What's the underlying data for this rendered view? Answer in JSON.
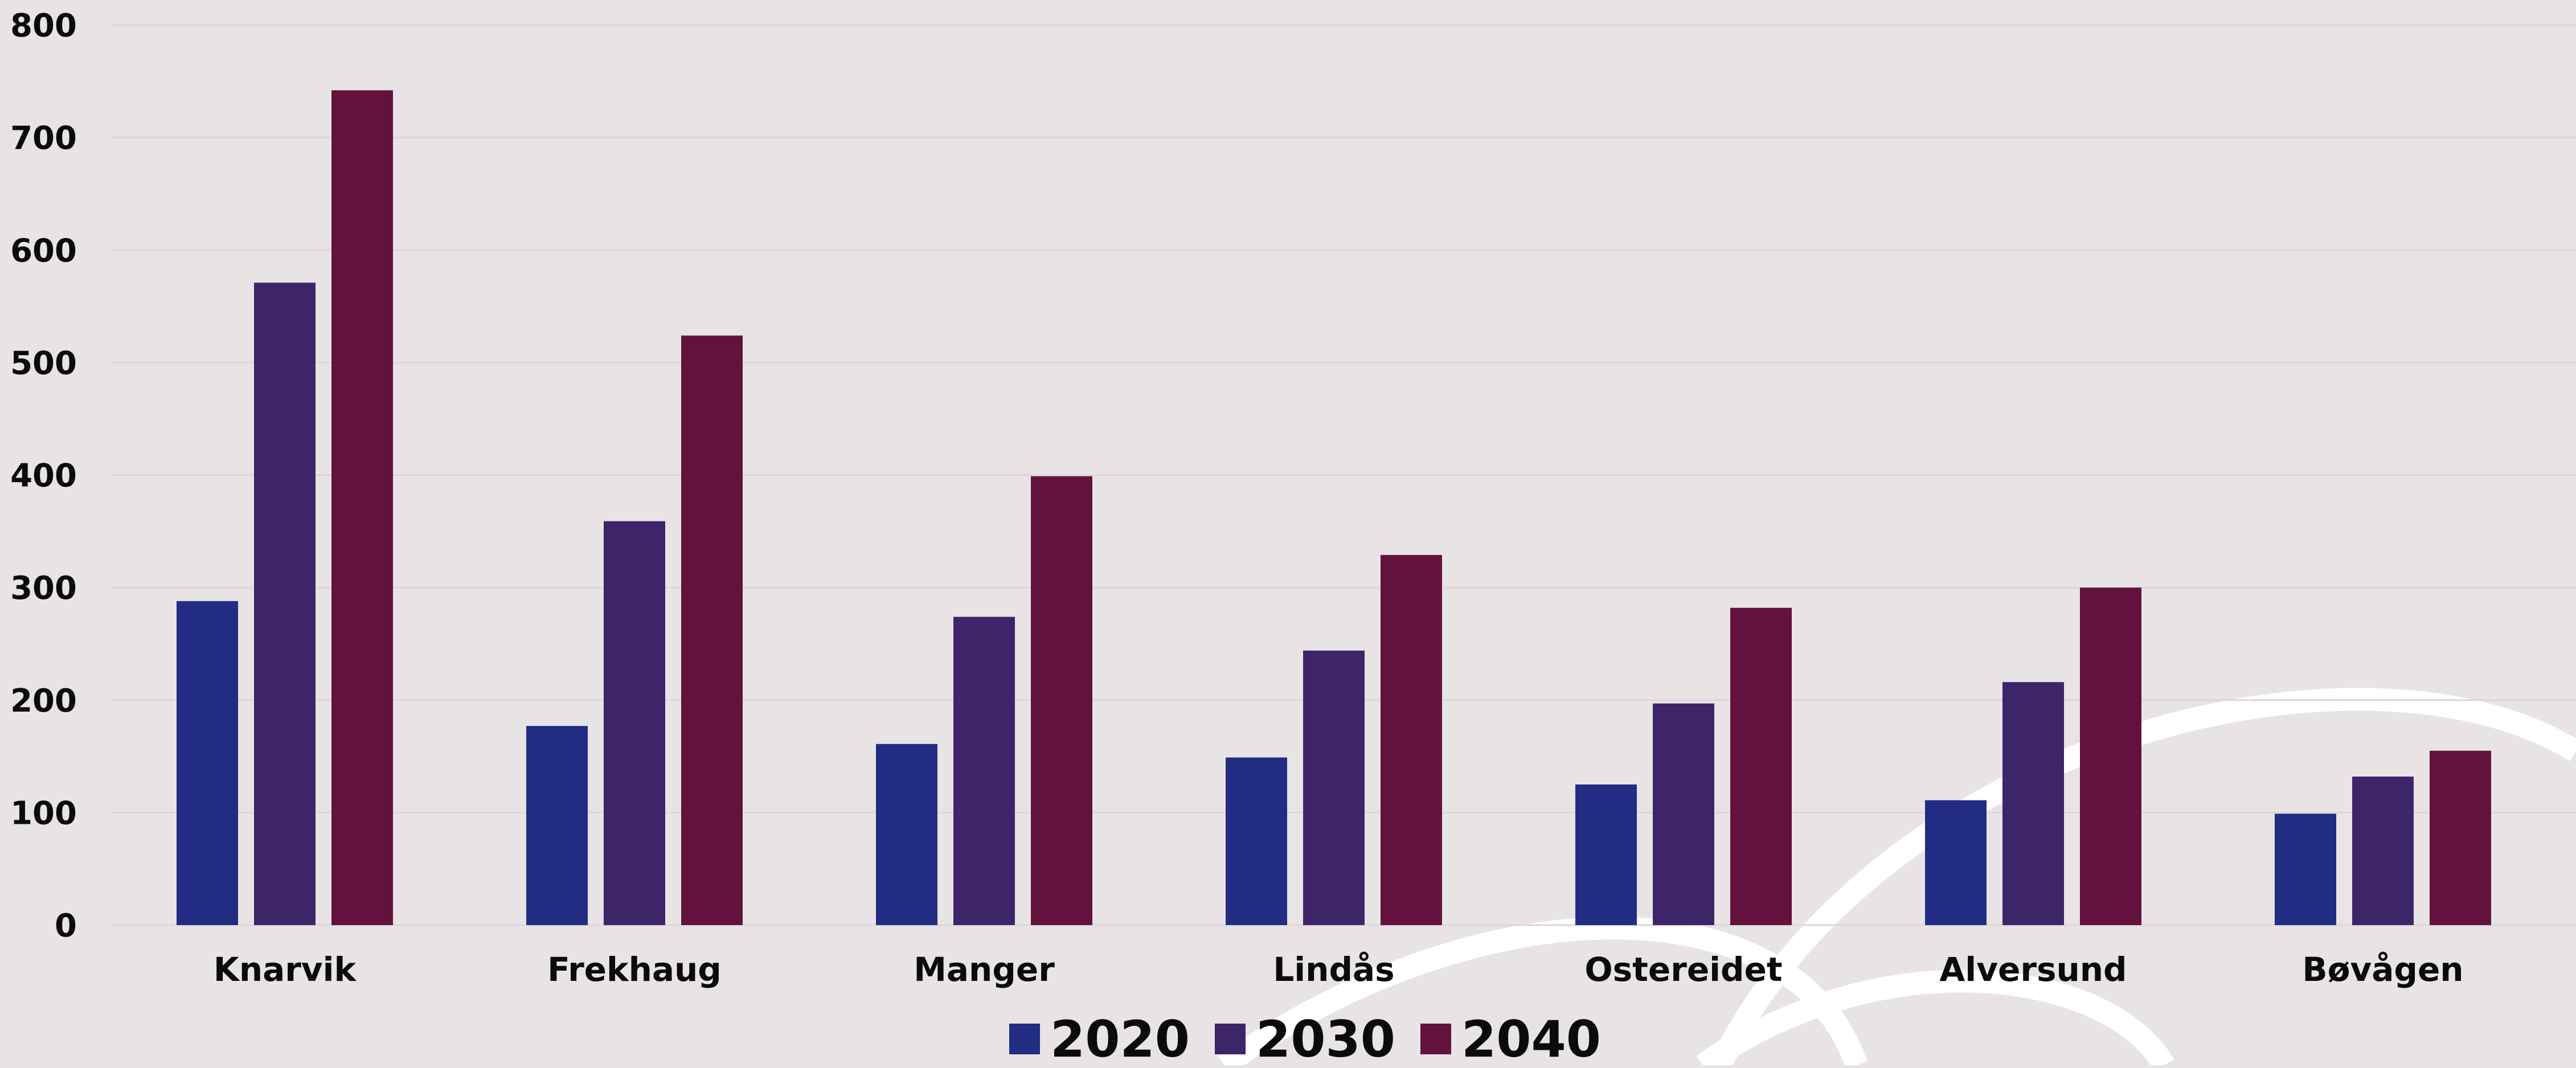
{
  "chart_data": {
    "type": "bar",
    "title": "",
    "xlabel": "",
    "ylabel": "",
    "categories": [
      "Knarvik",
      "Frekhaug",
      "Manger",
      "Lindås",
      "Ostereidet",
      "Alversund",
      "Bøvågen"
    ],
    "series": [
      {
        "name": "2020",
        "color": "#232c83",
        "values": [
          288,
          177,
          161,
          149,
          125,
          111,
          99
        ]
      },
      {
        "name": "2030",
        "color": "#3e2469",
        "values": [
          571,
          359,
          274,
          244,
          197,
          216,
          132
        ]
      },
      {
        "name": "2040",
        "color": "#62123d",
        "values": [
          742,
          524,
          399,
          329,
          282,
          300,
          155
        ]
      }
    ],
    "yticks": [
      "0",
      "100",
      "200",
      "300",
      "400",
      "500",
      "600",
      "700",
      "800"
    ],
    "ylim": [
      0,
      800
    ],
    "grid": true,
    "legend_position": "bottom-center",
    "colors": {
      "background": "#e8e4e6",
      "gridline": "#dcd6d9",
      "decoration": "#ffffff"
    }
  }
}
